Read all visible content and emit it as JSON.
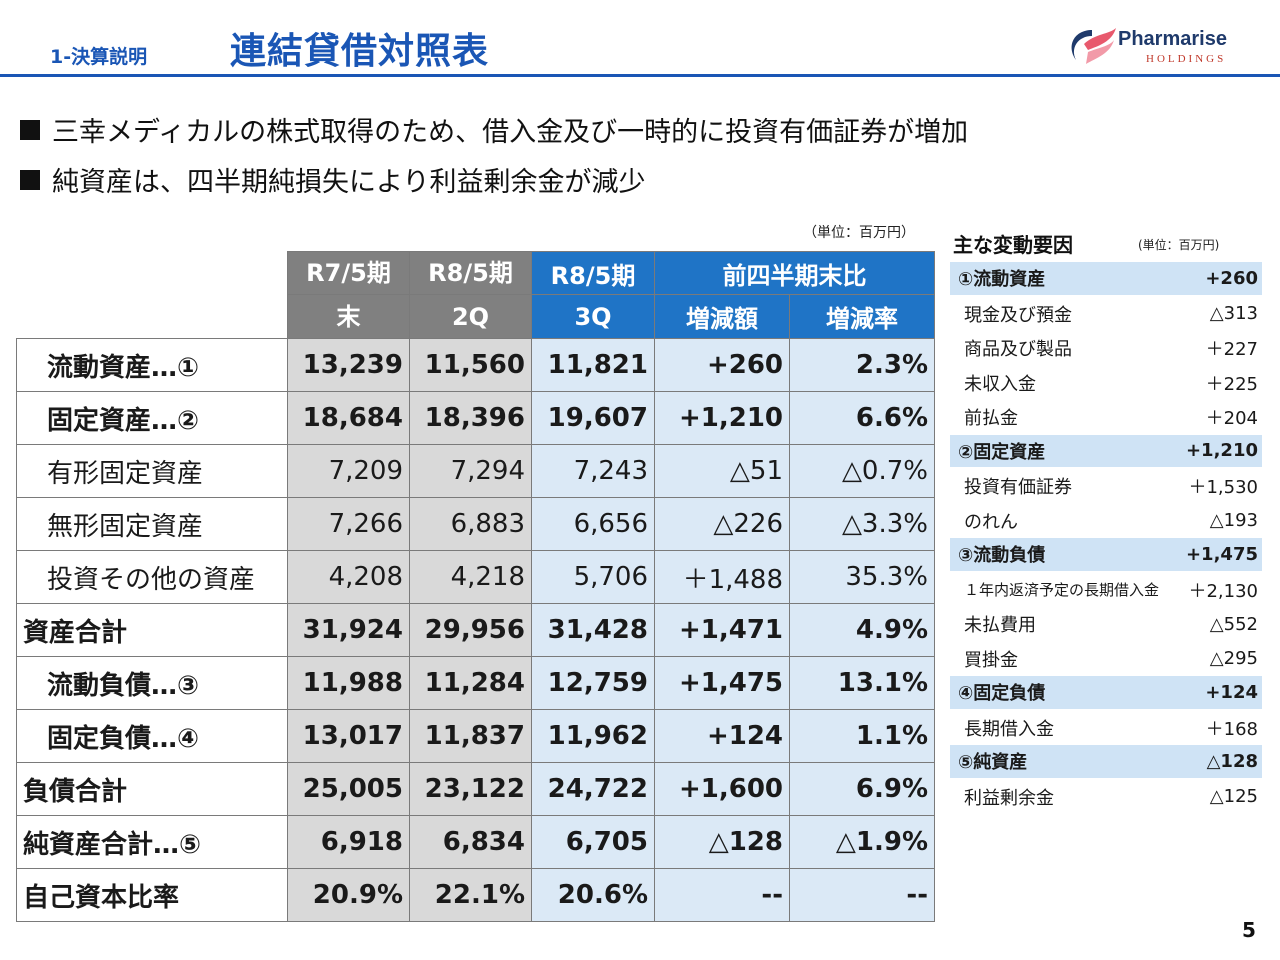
{
  "header": {
    "section": "1-決算説明",
    "title": "連結貸借対照表",
    "logo_name": "Pharmarise",
    "logo_sub": "HOLDINGS"
  },
  "bullets": [
    "三幸メディカルの株式取得のため、借入金及び一時的に投資有価証券が増加",
    "純資産は、四半期純損失により利益剰余金が減少"
  ],
  "table": {
    "unit": "（単位：百万円）",
    "headers": {
      "col1_line1": "R7/5期",
      "col1_line2": "末",
      "col2_line1": "R8/5期",
      "col2_line2": "2Q",
      "col3_line1": "R8/5期",
      "col3_line2": "3Q",
      "compare": "前四半期末比",
      "change": "増減額",
      "rate": "増減率"
    },
    "rows": [
      {
        "label": "流動資産…①",
        "v1": "13,239",
        "v2": "11,560",
        "v3": "11,821",
        "chg": "+260",
        "rate": "2.3%"
      },
      {
        "label": "固定資産…②",
        "v1": "18,684",
        "v2": "18,396",
        "v3": "19,607",
        "chg": "+1,210",
        "rate": "6.6%"
      },
      {
        "label": "有形固定資産",
        "v1": "7,209",
        "v2": "7,294",
        "v3": "7,243",
        "chg": "△51",
        "rate": "△0.7%"
      },
      {
        "label": "無形固定資産",
        "v1": "7,266",
        "v2": "6,883",
        "v3": "6,656",
        "chg": "△226",
        "rate": "△3.3%"
      },
      {
        "label": "投資その他の資産",
        "v1": "4,208",
        "v2": "4,218",
        "v3": "5,706",
        "chg": "＋1,488",
        "rate": "35.3%"
      },
      {
        "label": "資産合計",
        "v1": "31,924",
        "v2": "29,956",
        "v3": "31,428",
        "chg": "+1,471",
        "rate": "4.9%"
      },
      {
        "label": "流動負債…③",
        "v1": "11,988",
        "v2": "11,284",
        "v3": "12,759",
        "chg": "+1,475",
        "rate": "13.1%"
      },
      {
        "label": "固定負債…④",
        "v1": "13,017",
        "v2": "11,837",
        "v3": "11,962",
        "chg": "+124",
        "rate": "1.1%"
      },
      {
        "label": "負債合計",
        "v1": "25,005",
        "v2": "23,122",
        "v3": "24,722",
        "chg": "+1,600",
        "rate": "6.9%"
      },
      {
        "label": "純資産合計…⑤",
        "v1": "6,918",
        "v2": "6,834",
        "v3": "6,705",
        "chg": "△128",
        "rate": "△1.9%"
      },
      {
        "label": "自己資本比率",
        "v1": "20.9%",
        "v2": "22.1%",
        "v3": "20.6%",
        "chg": "--",
        "rate": "--"
      }
    ]
  },
  "side": {
    "title": "主な変動要因",
    "unit": "(単位：百万円)",
    "items": [
      {
        "name": "①流動資産",
        "value": "+260"
      },
      {
        "name": "現金及び預金",
        "value": "△313"
      },
      {
        "name": "商品及び製品",
        "value": "＋227"
      },
      {
        "name": "未収入金",
        "value": "＋225"
      },
      {
        "name": "前払金",
        "value": "＋204"
      },
      {
        "name": "②固定資産",
        "value": "+1,210"
      },
      {
        "name": "投資有価証券",
        "value": "＋1,530"
      },
      {
        "name": "のれん",
        "value": "△193"
      },
      {
        "name": "③流動負債",
        "value": "+1,475"
      },
      {
        "name": "１年内返済予定の長期借入金",
        "value": "＋2,130"
      },
      {
        "name": "未払費用",
        "value": "△552"
      },
      {
        "name": "買掛金",
        "value": "△295"
      },
      {
        "name": "④固定負債",
        "value": "+124"
      },
      {
        "name": "長期借入金",
        "value": "＋168"
      },
      {
        "name": "⑤純資産",
        "value": "△128"
      },
      {
        "name": "利益剰余金",
        "value": "△125"
      }
    ]
  },
  "page_number": "5"
}
